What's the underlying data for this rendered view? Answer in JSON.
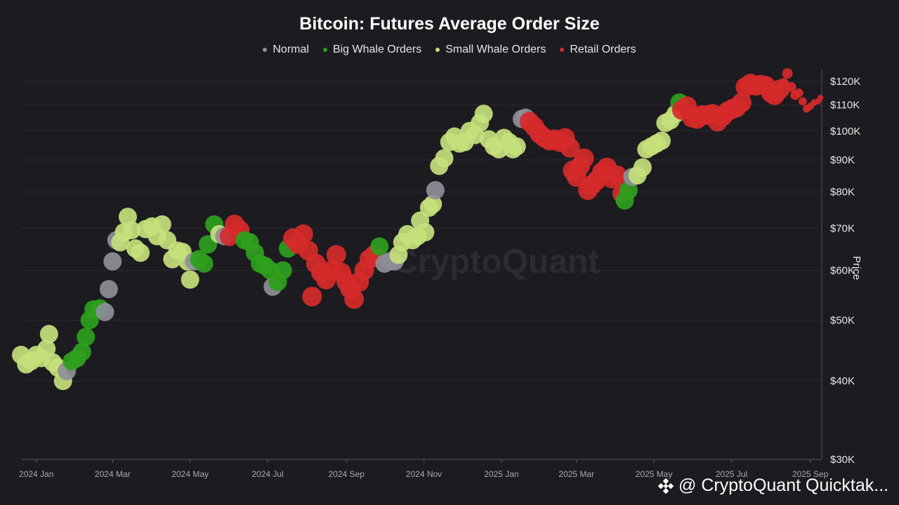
{
  "chart_data": {
    "type": "scatter",
    "title": "Bitcoin: Futures Average Order Size",
    "ylabel": "Price",
    "y_scale": "log",
    "ylim": [
      30000,
      125000
    ],
    "x_range": [
      "2023-12-20",
      "2025-09-10"
    ],
    "grid": true,
    "legend_position": "top",
    "series_colors": {
      "normal": "#8e8e98",
      "big_whale": "#2ea01d",
      "small_whale": "#c6e07c",
      "retail": "#d62a2a"
    },
    "legend": [
      {
        "key": "normal",
        "name": "Normal"
      },
      {
        "key": "big_whale",
        "name": "Big Whale Orders"
      },
      {
        "key": "small_whale",
        "name": "Small Whale Orders"
      },
      {
        "key": "retail",
        "name": "Retail Orders"
      }
    ],
    "y_ticks": [
      {
        "value": 30000,
        "label": "$30K"
      },
      {
        "value": 40000,
        "label": "$40K"
      },
      {
        "value": 50000,
        "label": "$50K"
      },
      {
        "value": 60000,
        "label": "$60K"
      },
      {
        "value": 70000,
        "label": "$70K"
      },
      {
        "value": 80000,
        "label": "$80K"
      },
      {
        "value": 90000,
        "label": "$90K"
      },
      {
        "value": 100000,
        "label": "$100K"
      },
      {
        "value": 110000,
        "label": "$110K"
      },
      {
        "value": 120000,
        "label": "$120K"
      }
    ],
    "x_ticks": [
      {
        "date": "2024-01-01",
        "label": "2024 Jan"
      },
      {
        "date": "2024-03-01",
        "label": "2024 Mar"
      },
      {
        "date": "2024-05-01",
        "label": "2024 May"
      },
      {
        "date": "2024-07-01",
        "label": "2024 Jul"
      },
      {
        "date": "2024-09-01",
        "label": "2024 Sep"
      },
      {
        "date": "2024-11-01",
        "label": "2024 Nov"
      },
      {
        "date": "2025-01-01",
        "label": "2025 Jan"
      },
      {
        "date": "2025-03-01",
        "label": "2025 Mar"
      },
      {
        "date": "2025-05-01",
        "label": "2025 May"
      },
      {
        "date": "2025-07-01",
        "label": "2025 Jul"
      },
      {
        "date": "2025-09-01",
        "label": "2025 Sep"
      }
    ],
    "points": [
      {
        "date": "2023-12-20",
        "price": 44000,
        "cat": "small_whale"
      },
      {
        "date": "2023-12-24",
        "price": 42500,
        "cat": "small_whale"
      },
      {
        "date": "2023-12-28",
        "price": 43000,
        "cat": "small_whale"
      },
      {
        "date": "2024-01-01",
        "price": 44000,
        "cat": "small_whale"
      },
      {
        "date": "2024-01-05",
        "price": 43500,
        "cat": "small_whale"
      },
      {
        "date": "2024-01-09",
        "price": 45000,
        "cat": "small_whale"
      },
      {
        "date": "2024-01-11",
        "price": 47500,
        "cat": "small_whale"
      },
      {
        "date": "2024-01-14",
        "price": 42800,
        "cat": "small_whale"
      },
      {
        "date": "2024-01-18",
        "price": 42000,
        "cat": "small_whale"
      },
      {
        "date": "2024-01-22",
        "price": 40000,
        "cat": "small_whale"
      },
      {
        "date": "2024-01-25",
        "price": 41500,
        "cat": "normal"
      },
      {
        "date": "2024-01-29",
        "price": 43000,
        "cat": "big_whale"
      },
      {
        "date": "2024-02-02",
        "price": 43500,
        "cat": "big_whale"
      },
      {
        "date": "2024-02-06",
        "price": 44500,
        "cat": "big_whale"
      },
      {
        "date": "2024-02-09",
        "price": 47000,
        "cat": "big_whale"
      },
      {
        "date": "2024-02-12",
        "price": 50000,
        "cat": "big_whale"
      },
      {
        "date": "2024-02-15",
        "price": 52000,
        "cat": "big_whale"
      },
      {
        "date": "2024-02-20",
        "price": 52200,
        "cat": "big_whale"
      },
      {
        "date": "2024-02-24",
        "price": 51500,
        "cat": "normal"
      },
      {
        "date": "2024-02-27",
        "price": 56000,
        "cat": "normal"
      },
      {
        "date": "2024-03-01",
        "price": 62000,
        "cat": "normal"
      },
      {
        "date": "2024-03-04",
        "price": 67000,
        "cat": "normal"
      },
      {
        "date": "2024-03-07",
        "price": 66500,
        "cat": "small_whale"
      },
      {
        "date": "2024-03-10",
        "price": 69000,
        "cat": "small_whale"
      },
      {
        "date": "2024-03-13",
        "price": 73000,
        "cat": "small_whale"
      },
      {
        "date": "2024-03-16",
        "price": 69500,
        "cat": "small_whale"
      },
      {
        "date": "2024-03-19",
        "price": 65000,
        "cat": "small_whale"
      },
      {
        "date": "2024-03-23",
        "price": 64000,
        "cat": "small_whale"
      },
      {
        "date": "2024-03-27",
        "price": 69800,
        "cat": "small_whale"
      },
      {
        "date": "2024-04-01",
        "price": 70500,
        "cat": "small_whale"
      },
      {
        "date": "2024-04-05",
        "price": 68000,
        "cat": "small_whale"
      },
      {
        "date": "2024-04-09",
        "price": 71000,
        "cat": "small_whale"
      },
      {
        "date": "2024-04-13",
        "price": 67000,
        "cat": "small_whale"
      },
      {
        "date": "2024-04-17",
        "price": 62500,
        "cat": "small_whale"
      },
      {
        "date": "2024-04-21",
        "price": 64500,
        "cat": "small_whale"
      },
      {
        "date": "2024-04-25",
        "price": 64200,
        "cat": "small_whale"
      },
      {
        "date": "2024-04-29",
        "price": 62000,
        "cat": "small_whale"
      },
      {
        "date": "2024-05-01",
        "price": 58000,
        "cat": "small_whale"
      },
      {
        "date": "2024-05-04",
        "price": 62000,
        "cat": "normal"
      },
      {
        "date": "2024-05-08",
        "price": 62500,
        "cat": "big_whale"
      },
      {
        "date": "2024-05-12",
        "price": 61500,
        "cat": "big_whale"
      },
      {
        "date": "2024-05-15",
        "price": 66000,
        "cat": "big_whale"
      },
      {
        "date": "2024-05-20",
        "price": 71000,
        "cat": "big_whale"
      },
      {
        "date": "2024-05-24",
        "price": 68500,
        "cat": "small_whale"
      },
      {
        "date": "2024-05-28",
        "price": 68000,
        "cat": "normal"
      },
      {
        "date": "2024-06-01",
        "price": 68000,
        "cat": "retail"
      },
      {
        "date": "2024-06-05",
        "price": 71000,
        "cat": "retail"
      },
      {
        "date": "2024-06-09",
        "price": 69500,
        "cat": "retail"
      },
      {
        "date": "2024-06-13",
        "price": 67000,
        "cat": "big_whale"
      },
      {
        "date": "2024-06-17",
        "price": 66500,
        "cat": "big_whale"
      },
      {
        "date": "2024-06-21",
        "price": 64000,
        "cat": "big_whale"
      },
      {
        "date": "2024-06-25",
        "price": 61500,
        "cat": "big_whale"
      },
      {
        "date": "2024-06-29",
        "price": 61000,
        "cat": "big_whale"
      },
      {
        "date": "2024-07-03",
        "price": 60000,
        "cat": "big_whale"
      },
      {
        "date": "2024-07-05",
        "price": 56500,
        "cat": "normal"
      },
      {
        "date": "2024-07-09",
        "price": 57500,
        "cat": "big_whale"
      },
      {
        "date": "2024-07-13",
        "price": 60000,
        "cat": "big_whale"
      },
      {
        "date": "2024-07-17",
        "price": 65000,
        "cat": "big_whale"
      },
      {
        "date": "2024-07-21",
        "price": 67500,
        "cat": "retail"
      },
      {
        "date": "2024-07-25",
        "price": 66000,
        "cat": "retail"
      },
      {
        "date": "2024-07-29",
        "price": 68500,
        "cat": "retail"
      },
      {
        "date": "2024-08-02",
        "price": 64500,
        "cat": "retail"
      },
      {
        "date": "2024-08-05",
        "price": 54500,
        "cat": "retail"
      },
      {
        "date": "2024-08-08",
        "price": 61500,
        "cat": "retail"
      },
      {
        "date": "2024-08-12",
        "price": 59500,
        "cat": "retail"
      },
      {
        "date": "2024-08-16",
        "price": 58000,
        "cat": "retail"
      },
      {
        "date": "2024-08-20",
        "price": 60000,
        "cat": "retail"
      },
      {
        "date": "2024-08-24",
        "price": 63500,
        "cat": "retail"
      },
      {
        "date": "2024-08-28",
        "price": 59500,
        "cat": "retail"
      },
      {
        "date": "2024-09-01",
        "price": 57500,
        "cat": "retail"
      },
      {
        "date": "2024-09-04",
        "price": 56000,
        "cat": "retail"
      },
      {
        "date": "2024-09-07",
        "price": 54000,
        "cat": "retail"
      },
      {
        "date": "2024-09-11",
        "price": 57500,
        "cat": "retail"
      },
      {
        "date": "2024-09-15",
        "price": 60000,
        "cat": "retail"
      },
      {
        "date": "2024-09-19",
        "price": 62500,
        "cat": "retail"
      },
      {
        "date": "2024-09-23",
        "price": 63500,
        "cat": "retail"
      },
      {
        "date": "2024-09-27",
        "price": 65500,
        "cat": "big_whale"
      },
      {
        "date": "2024-10-01",
        "price": 61500,
        "cat": "normal"
      },
      {
        "date": "2024-10-05",
        "price": 62000,
        "cat": "normal"
      },
      {
        "date": "2024-10-09",
        "price": 62000,
        "cat": "normal"
      },
      {
        "date": "2024-10-12",
        "price": 63500,
        "cat": "small_whale"
      },
      {
        "date": "2024-10-15",
        "price": 66500,
        "cat": "small_whale"
      },
      {
        "date": "2024-10-19",
        "price": 68500,
        "cat": "small_whale"
      },
      {
        "date": "2024-10-23",
        "price": 67000,
        "cat": "small_whale"
      },
      {
        "date": "2024-10-27",
        "price": 68000,
        "cat": "small_whale"
      },
      {
        "date": "2024-10-29",
        "price": 72000,
        "cat": "small_whale"
      },
      {
        "date": "2024-11-02",
        "price": 69000,
        "cat": "small_whale"
      },
      {
        "date": "2024-11-05",
        "price": 75500,
        "cat": "small_whale"
      },
      {
        "date": "2024-11-08",
        "price": 76500,
        "cat": "small_whale"
      },
      {
        "date": "2024-11-10",
        "price": 80500,
        "cat": "normal"
      },
      {
        "date": "2024-11-13",
        "price": 88000,
        "cat": "small_whale"
      },
      {
        "date": "2024-11-17",
        "price": 90500,
        "cat": "small_whale"
      },
      {
        "date": "2024-11-21",
        "price": 96000,
        "cat": "small_whale"
      },
      {
        "date": "2024-11-25",
        "price": 98000,
        "cat": "small_whale"
      },
      {
        "date": "2024-11-29",
        "price": 95500,
        "cat": "small_whale"
      },
      {
        "date": "2024-12-03",
        "price": 96000,
        "cat": "small_whale"
      },
      {
        "date": "2024-12-07",
        "price": 100000,
        "cat": "small_whale"
      },
      {
        "date": "2024-12-11",
        "price": 98500,
        "cat": "small_whale"
      },
      {
        "date": "2024-12-15",
        "price": 103000,
        "cat": "small_whale"
      },
      {
        "date": "2024-12-18",
        "price": 106500,
        "cat": "small_whale"
      },
      {
        "date": "2024-12-22",
        "price": 97000,
        "cat": "small_whale"
      },
      {
        "date": "2024-12-26",
        "price": 94500,
        "cat": "small_whale"
      },
      {
        "date": "2024-12-30",
        "price": 93500,
        "cat": "small_whale"
      },
      {
        "date": "2025-01-03",
        "price": 97500,
        "cat": "small_whale"
      },
      {
        "date": "2025-01-07",
        "price": 96000,
        "cat": "small_whale"
      },
      {
        "date": "2025-01-10",
        "price": 93500,
        "cat": "small_whale"
      },
      {
        "date": "2025-01-13",
        "price": 94500,
        "cat": "small_whale"
      },
      {
        "date": "2025-01-17",
        "price": 104500,
        "cat": "normal"
      },
      {
        "date": "2025-01-20",
        "price": 105000,
        "cat": "normal"
      },
      {
        "date": "2025-01-23",
        "price": 103500,
        "cat": "retail"
      },
      {
        "date": "2025-01-27",
        "price": 101500,
        "cat": "retail"
      },
      {
        "date": "2025-01-31",
        "price": 99000,
        "cat": "retail"
      },
      {
        "date": "2025-02-04",
        "price": 97500,
        "cat": "retail"
      },
      {
        "date": "2025-02-08",
        "price": 96500,
        "cat": "retail"
      },
      {
        "date": "2025-02-12",
        "price": 97000,
        "cat": "retail"
      },
      {
        "date": "2025-02-16",
        "price": 96000,
        "cat": "retail"
      },
      {
        "date": "2025-02-20",
        "price": 97500,
        "cat": "retail"
      },
      {
        "date": "2025-02-24",
        "price": 94000,
        "cat": "retail"
      },
      {
        "date": "2025-02-26",
        "price": 86500,
        "cat": "retail"
      },
      {
        "date": "2025-03-01",
        "price": 84500,
        "cat": "retail"
      },
      {
        "date": "2025-03-04",
        "price": 88000,
        "cat": "retail"
      },
      {
        "date": "2025-03-07",
        "price": 90500,
        "cat": "retail"
      },
      {
        "date": "2025-03-10",
        "price": 80500,
        "cat": "retail"
      },
      {
        "date": "2025-03-13",
        "price": 82000,
        "cat": "retail"
      },
      {
        "date": "2025-03-17",
        "price": 83500,
        "cat": "retail"
      },
      {
        "date": "2025-03-21",
        "price": 86000,
        "cat": "retail"
      },
      {
        "date": "2025-03-25",
        "price": 87500,
        "cat": "retail"
      },
      {
        "date": "2025-03-29",
        "price": 84000,
        "cat": "retail"
      },
      {
        "date": "2025-04-02",
        "price": 85000,
        "cat": "retail"
      },
      {
        "date": "2025-04-06",
        "price": 79500,
        "cat": "retail"
      },
      {
        "date": "2025-04-08",
        "price": 77500,
        "cat": "big_whale"
      },
      {
        "date": "2025-04-11",
        "price": 80500,
        "cat": "big_whale"
      },
      {
        "date": "2025-04-14",
        "price": 84500,
        "cat": "normal"
      },
      {
        "date": "2025-04-18",
        "price": 85000,
        "cat": "small_whale"
      },
      {
        "date": "2025-04-22",
        "price": 87500,
        "cat": "small_whale"
      },
      {
        "date": "2025-04-25",
        "price": 93500,
        "cat": "small_whale"
      },
      {
        "date": "2025-04-29",
        "price": 94500,
        "cat": "small_whale"
      },
      {
        "date": "2025-05-03",
        "price": 95500,
        "cat": "small_whale"
      },
      {
        "date": "2025-05-07",
        "price": 96500,
        "cat": "small_whale"
      },
      {
        "date": "2025-05-10",
        "price": 103000,
        "cat": "small_whale"
      },
      {
        "date": "2025-05-14",
        "price": 104000,
        "cat": "small_whale"
      },
      {
        "date": "2025-05-18",
        "price": 106500,
        "cat": "small_whale"
      },
      {
        "date": "2025-05-21",
        "price": 111000,
        "cat": "big_whale"
      },
      {
        "date": "2025-05-23",
        "price": 108000,
        "cat": "retail"
      },
      {
        "date": "2025-05-27",
        "price": 109500,
        "cat": "retail"
      },
      {
        "date": "2025-05-31",
        "price": 105000,
        "cat": "retail"
      },
      {
        "date": "2025-06-04",
        "price": 104500,
        "cat": "retail"
      },
      {
        "date": "2025-06-08",
        "price": 106000,
        "cat": "retail"
      },
      {
        "date": "2025-06-12",
        "price": 106000,
        "cat": "retail"
      },
      {
        "date": "2025-06-16",
        "price": 106500,
        "cat": "retail"
      },
      {
        "date": "2025-06-20",
        "price": 103500,
        "cat": "retail"
      },
      {
        "date": "2025-06-24",
        "price": 105500,
        "cat": "retail"
      },
      {
        "date": "2025-06-28",
        "price": 107500,
        "cat": "retail"
      },
      {
        "date": "2025-07-02",
        "price": 108500,
        "cat": "retail"
      },
      {
        "date": "2025-07-05",
        "price": 109000,
        "cat": "retail"
      },
      {
        "date": "2025-07-09",
        "price": 111000,
        "cat": "retail"
      },
      {
        "date": "2025-07-12",
        "price": 117500,
        "cat": "retail"
      },
      {
        "date": "2025-07-16",
        "price": 119000,
        "cat": "retail"
      },
      {
        "date": "2025-07-20",
        "price": 118000,
        "cat": "retail"
      },
      {
        "date": "2025-07-24",
        "price": 118500,
        "cat": "retail"
      },
      {
        "date": "2025-07-28",
        "price": 118000,
        "cat": "retail"
      },
      {
        "date": "2025-08-01",
        "price": 115000,
        "cat": "retail"
      },
      {
        "date": "2025-08-04",
        "price": 114000,
        "cat": "retail"
      },
      {
        "date": "2025-08-08",
        "price": 116500,
        "cat": "retail"
      },
      {
        "date": "2025-08-11",
        "price": 119000,
        "cat": "retail"
      },
      {
        "date": "2025-08-14",
        "price": 123500,
        "cat": "retail"
      },
      {
        "date": "2025-08-17",
        "price": 117500,
        "cat": "retail"
      },
      {
        "date": "2025-08-20",
        "price": 114000,
        "cat": "retail"
      },
      {
        "date": "2025-08-23",
        "price": 115000,
        "cat": "retail"
      },
      {
        "date": "2025-08-26",
        "price": 111500,
        "cat": "retail"
      },
      {
        "date": "2025-08-29",
        "price": 108500,
        "cat": "retail"
      },
      {
        "date": "2025-09-01",
        "price": 109500,
        "cat": "retail"
      },
      {
        "date": "2025-09-04",
        "price": 111000,
        "cat": "retail"
      },
      {
        "date": "2025-09-07",
        "price": 111500,
        "cat": "retail"
      },
      {
        "date": "2025-09-09",
        "price": 113000,
        "cat": "retail"
      }
    ]
  },
  "watermark": "CryptoQuant",
  "branding": {
    "text": "@ CryptoQuant Quicktak...",
    "icon": "binance-icon"
  }
}
